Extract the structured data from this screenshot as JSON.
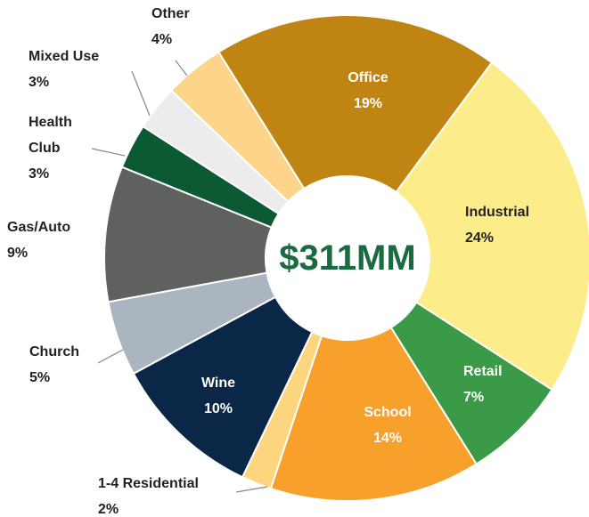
{
  "chart_data": {
    "type": "pie",
    "donut": true,
    "center_label": "$311MM",
    "categories": [
      "Office",
      "Industrial",
      "Retail",
      "School",
      "1-4 Residential",
      "Wine",
      "Church",
      "Gas/Auto",
      "Health Club",
      "Mixed Use",
      "Other"
    ],
    "values": [
      19,
      24,
      7,
      14,
      2,
      10,
      5,
      9,
      3,
      3,
      4
    ],
    "value_labels": [
      "19%",
      "24%",
      "7%",
      "14%",
      "2%",
      "10%",
      "5%",
      "9%",
      "3%",
      "3%",
      "4%"
    ],
    "colors": [
      "#bf8411",
      "#fded8a",
      "#3a9a48",
      "#f7a02c",
      "#fcd57f",
      "#0b2747",
      "#aab5bf",
      "#5f615e",
      "#0b5a33",
      "#ececec",
      "#fcd48a"
    ]
  }
}
